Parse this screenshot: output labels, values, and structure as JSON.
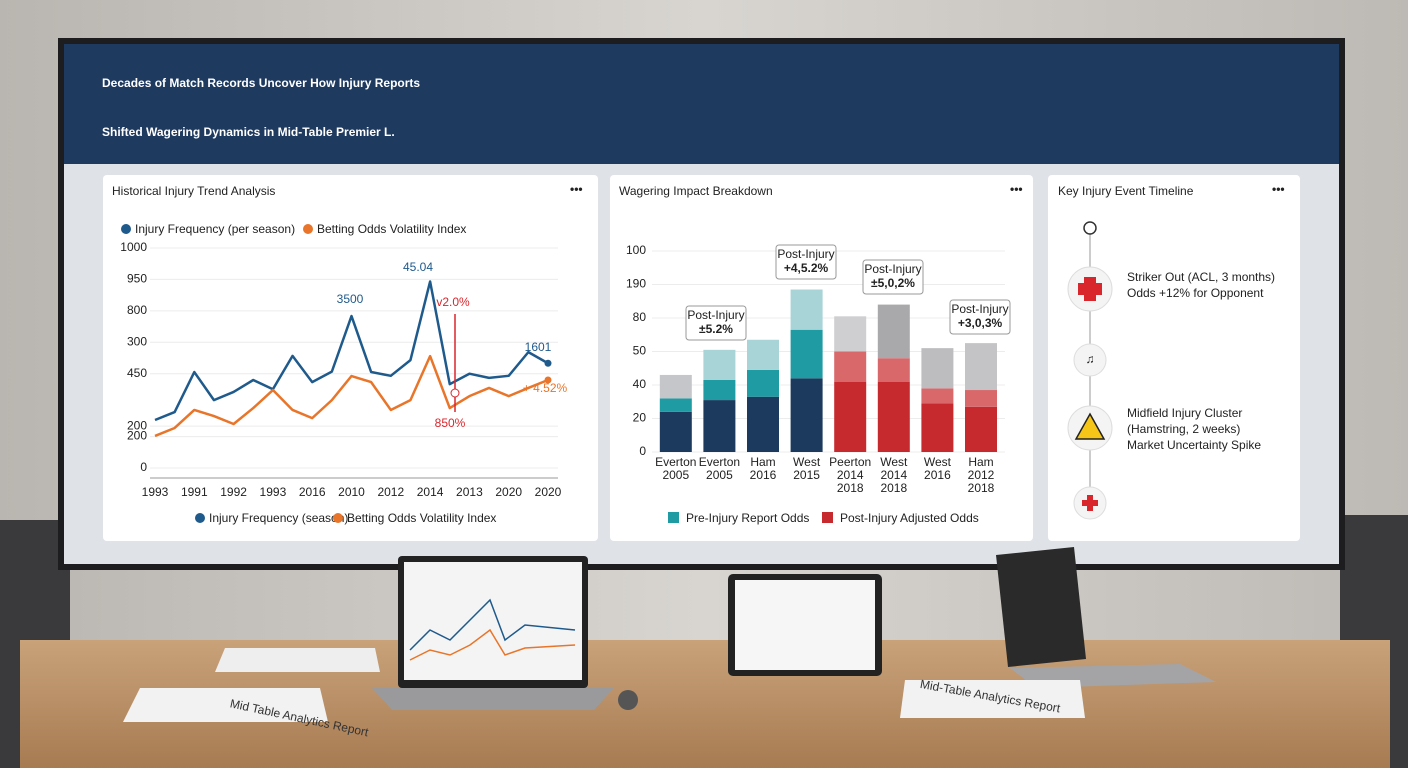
{
  "title": [
    "Decades of Match Records Uncover How Injury Reports",
    "Shifted Wagering Dynamics in Mid-Table Premier L."
  ],
  "chart_data": [
    {
      "type": "line",
      "title": "Historical Injury Trend Analysis",
      "categories": [
        "1993",
        null,
        "1991",
        null,
        "1992",
        null,
        "1993",
        null,
        "2016",
        null,
        "2010",
        null,
        "2012",
        null,
        "2014",
        null,
        "2013",
        null,
        "2020",
        null,
        "2020"
      ],
      "series": [
        {
          "name": "Injury Frequency (per season)",
          "color": "#1f5a8c",
          "values": [
            229,
            267,
            458,
            324,
            363,
            420,
            376,
            535,
            410,
            460,
            725,
            458,
            440,
            515,
            890,
            400,
            450,
            430,
            440,
            553,
            500
          ]
        },
        {
          "name": "Betting Odds Volatility Index",
          "color": "#e8752a",
          "values": [
            153,
            191,
            277,
            248,
            210,
            286,
            372,
            277,
            238,
            324,
            439,
            410,
            277,
            324,
            534,
            286,
            343,
            382,
            343,
            382,
            420
          ]
        }
      ],
      "ylim": [
        0,
        1050
      ],
      "yticks": [
        0,
        {
          "value": 150,
          "label": "200"
        },
        200,
        450,
        {
          "value": 600,
          "label": "300"
        },
        {
          "value": 750,
          "label": "800"
        },
        {
          "value": 900,
          "label": "950"
        },
        {
          "value": 1050,
          "label": "1000"
        }
      ],
      "grid": true,
      "annotations": [
        "3500",
        "45.04",
        "v2.0%",
        "1601",
        "+ 4.52%",
        "850%"
      ],
      "legend_bottom": [
        "Injury Frequency (season)",
        "Betting Odds Volatility Index"
      ]
    },
    {
      "type": "bar",
      "title": "Wagering Impact Breakdown",
      "categories": [
        "Everton\n2005",
        "Everton\n2005",
        "Ham\n2016",
        "West\n2015",
        "Peerton\n2014\n2018",
        "West\n2014\n2018",
        "West\n2016",
        "Ham\n2012\n2018"
      ],
      "series": [
        {
          "colors": [
            "#1b3a5e",
            "#1b3a5e",
            "#1b3a5e",
            "#1b3a5e",
            "#c62a2f",
            "#c62a2f",
            "#c62a2f",
            "#c62a2f"
          ],
          "values": [
            24,
            31,
            33,
            44,
            42,
            42,
            29,
            27
          ]
        },
        {
          "colors": [
            "#1f9ba3",
            "#1f9ba3",
            "#1f9ba3",
            "#1f9ba3",
            "#d9686b",
            "#d9686b",
            "#d9686b",
            "#d9686b"
          ],
          "values": [
            8,
            12,
            16,
            29,
            18,
            14,
            9,
            10
          ]
        },
        {
          "colors": [
            "#c4c6c9",
            "#a8d3d7",
            "#a8d3d7",
            "#a8d3d7",
            "#cfcfd1",
            "#a9a9ab",
            "#bdbdbf",
            "#c4c4c6"
          ],
          "values": [
            14,
            18,
            18,
            24,
            21,
            32,
            24,
            28
          ]
        }
      ],
      "ylim": [
        0,
        120
      ],
      "yticks": [
        0,
        20,
        40,
        {
          "value": 60,
          "label": "50"
        },
        80,
        {
          "value": 100,
          "label": "190"
        },
        {
          "value": 120,
          "label": "100"
        }
      ],
      "grid": true,
      "callouts": [
        [
          "Post-Injury",
          "±5.2%"
        ],
        [
          "Post-Injury",
          "+4,5.2%"
        ],
        [
          "Post-Injury",
          "±5,0,2%"
        ],
        [
          "Post-Injury",
          "+3,0,3%"
        ]
      ],
      "legend": [
        {
          "name": "Pre-Injury Report Odds",
          "color": "#1f9ba3"
        },
        {
          "name": "Post-Injury Adjusted Odds",
          "color": "#c62a2f"
        }
      ]
    }
  ],
  "timeline": {
    "title": "Key Injury Event Timeline",
    "events": [
      {
        "lines": [
          "Striker Out (ACL, 3 months)",
          "Odds +12% for Opponent"
        ]
      },
      {
        "lines": [
          "Midfield Injury Cluster",
          "(Hamstring, 2 weeks)",
          "Market Uncertainty Spike"
        ]
      }
    ]
  },
  "report_covers": [
    "Mid Table Analytics Report",
    "Mid-Table Analytics Report"
  ]
}
